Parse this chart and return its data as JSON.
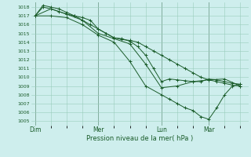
{
  "xlabel": "Pression niveau de la mer( hPa )",
  "bg_color": "#ceeeed",
  "grid_color": "#99ccbb",
  "line_color": "#1a5c2a",
  "vline_color": "#557766",
  "ylim": [
    1004.5,
    1018.5
  ],
  "yticks": [
    1005,
    1006,
    1007,
    1008,
    1009,
    1010,
    1011,
    1012,
    1013,
    1014,
    1015,
    1016,
    1017,
    1018
  ],
  "xtick_labels": [
    "Dim",
    "Mer",
    "Lun",
    "Mar"
  ],
  "xtick_positions": [
    0,
    8,
    16,
    22
  ],
  "xlim": [
    -0.5,
    27
  ],
  "vlines": [
    0,
    8,
    16,
    22
  ],
  "series": [
    {
      "x": [
        0,
        1,
        2,
        3,
        4,
        5,
        6,
        7,
        8,
        9,
        10,
        11,
        12,
        13,
        14,
        15,
        16,
        17,
        18,
        19,
        20,
        21,
        22,
        23,
        24,
        25,
        26
      ],
      "y": [
        1017.0,
        1018.2,
        1018.0,
        1017.8,
        1017.4,
        1017.0,
        1016.5,
        1016.0,
        1015.5,
        1015.0,
        1014.5,
        1014.3,
        1014.2,
        1014.0,
        1013.5,
        1013.0,
        1012.5,
        1012.0,
        1011.5,
        1011.0,
        1010.5,
        1010.0,
        1009.7,
        1009.5,
        1009.3,
        1009.1,
        1009.0
      ]
    },
    {
      "x": [
        0,
        1,
        2,
        3,
        4,
        5,
        6,
        7,
        8,
        9,
        10,
        11,
        12,
        13,
        14,
        15,
        16,
        17,
        18,
        19,
        20,
        21,
        22,
        23,
        24,
        25,
        26
      ],
      "y": [
        1017.0,
        1018.0,
        1017.8,
        1017.5,
        1017.2,
        1017.0,
        1016.8,
        1016.5,
        1015.5,
        1015.0,
        1014.5,
        1014.4,
        1014.1,
        1013.5,
        1012.5,
        1011.0,
        1009.5,
        1009.8,
        1009.7,
        1009.6,
        1009.5,
        1009.5,
        1009.8,
        1009.7,
        1009.5,
        1009.3,
        1009.2
      ]
    },
    {
      "x": [
        0,
        2,
        4,
        6,
        8,
        10,
        12,
        14,
        16,
        18,
        20,
        22,
        24,
        26
      ],
      "y": [
        1017.0,
        1017.8,
        1017.2,
        1016.5,
        1015.0,
        1014.4,
        1013.8,
        1011.5,
        1008.8,
        1009.0,
        1009.5,
        1009.7,
        1009.8,
        1009.0
      ]
    },
    {
      "x": [
        0,
        2,
        4,
        6,
        8,
        10,
        12,
        14,
        16,
        17,
        18,
        19,
        20,
        21,
        22,
        23,
        24,
        25,
        26
      ],
      "y": [
        1017.0,
        1017.0,
        1016.8,
        1016.0,
        1014.8,
        1014.0,
        1011.8,
        1009.0,
        1008.0,
        1007.5,
        1007.0,
        1006.5,
        1006.2,
        1005.5,
        1005.2,
        1006.5,
        1008.0,
        1009.0,
        1009.2
      ]
    }
  ]
}
